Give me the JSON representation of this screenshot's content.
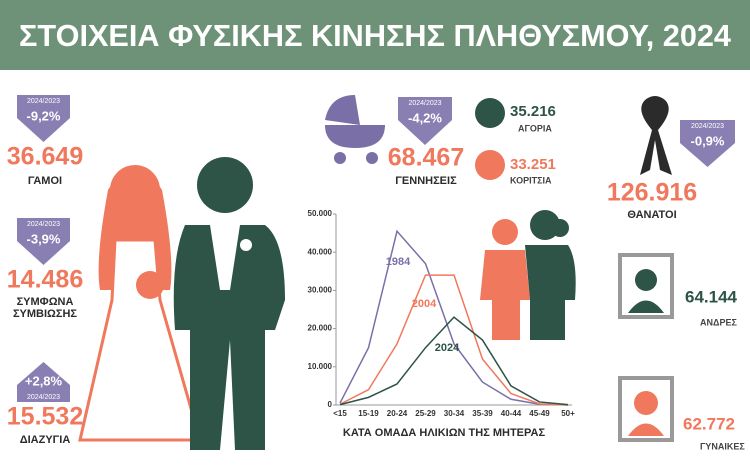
{
  "header": {
    "title": "ΣΤΟΙΧΕΙΑ ΦΥΣΙΚΗΣ ΚΙΝΗΣΗΣ ΠΛΗΘΥΣΜΟΥ, 2024"
  },
  "marriages": {
    "period": "2024/2023",
    "change": "-9,2%",
    "value": "36.649",
    "label": "ΓΑΜΟΙ"
  },
  "partnerships": {
    "period": "2024/2023",
    "change": "-3,9%",
    "value": "14.486",
    "label_lines": [
      "ΣΥΜΦΩΝΑ",
      "ΣΥΜΒΙΩΣΗΣ"
    ]
  },
  "divorces": {
    "period": "2024/2023",
    "change": "+2,8%",
    "value": "15.532",
    "label": "ΔΙΑΖΥΓΙΑ"
  },
  "births": {
    "period": "2024/2023",
    "change": "-4,2%",
    "value": "68.467",
    "label": "ΓΕΝΝΗΣΕΙΣ",
    "boys": {
      "value": "35.216",
      "label": "ΑΓΟΡΙΑ"
    },
    "girls": {
      "value": "33.251",
      "label": "ΚΟΡΙΤΣΙΑ"
    }
  },
  "deaths": {
    "period": "2024/2023",
    "change": "-0,9%",
    "value": "126.916",
    "label": "ΘΑΝΑΤΟΙ",
    "men": {
      "value": "64.144",
      "label": "ΑΝΔΡΕΣ"
    },
    "women": {
      "value": "62.772",
      "label": "ΓΥΝΑΙΚΕΣ"
    }
  },
  "chart_data": {
    "type": "line",
    "x_label": "ΚΑΤΑ ΟΜΑΔΑ ΗΛΙΚΙΩΝ ΤΗΣ ΜΗΤΕΡΑΣ",
    "categories": [
      "<15",
      "15-19",
      "20-24",
      "25-29",
      "30-34",
      "35-39",
      "40-44",
      "45-49",
      "50+"
    ],
    "series": [
      {
        "name": "1984",
        "color": "#7b6fa8",
        "values": [
          500,
          15000,
          45500,
          37000,
          16000,
          6000,
          1500,
          200,
          0
        ]
      },
      {
        "name": "2004",
        "color": "#f0785c",
        "values": [
          200,
          4000,
          16000,
          34000,
          34000,
          12000,
          3000,
          300,
          0
        ]
      },
      {
        "name": "2024",
        "color": "#2d5446",
        "values": [
          100,
          2000,
          5500,
          15000,
          23000,
          17000,
          5000,
          800,
          100
        ]
      }
    ],
    "ylim": [
      0,
      50000
    ],
    "yticks": [
      0,
      {
        "value": 10000,
        "label": "10.000"
      },
      {
        "value": 20000,
        "label": "20.000"
      },
      {
        "value": 30000,
        "label": "30.000"
      },
      {
        "value": 40000,
        "label": "40.000"
      },
      {
        "value": 50000,
        "label": "50.000"
      }
    ]
  }
}
